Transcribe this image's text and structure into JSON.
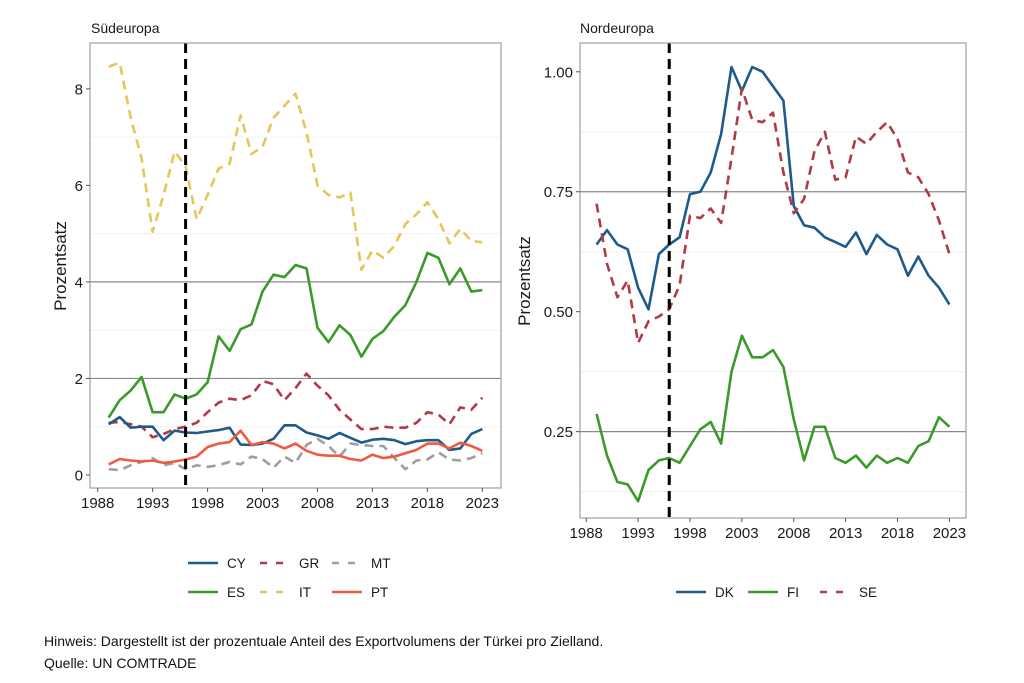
{
  "chart_data": [
    {
      "type": "line",
      "title": "Südeuropa",
      "xlabel": "",
      "ylabel": "Prozentsatz",
      "xlim": [
        1987.3,
        2024.7
      ],
      "ylim": [
        -0.27,
        8.95
      ],
      "xticks": [
        1988,
        1993,
        1998,
        2003,
        2008,
        2013,
        2018,
        2023
      ],
      "xtick_labels": [
        "1988",
        "1993",
        "1998",
        "2003",
        "2008",
        "2013",
        "2018",
        "2023"
      ],
      "yticks": [
        0,
        2,
        4,
        6,
        8
      ],
      "ytick_labels": [
        "0",
        "2",
        "4",
        "6",
        "8"
      ],
      "major_gridlines": [
        2,
        4
      ],
      "minor_gridlines": [
        1,
        3,
        5,
        7
      ],
      "vline": 1996,
      "legend_position": "bottom",
      "x": [
        1989,
        1990,
        1991,
        1992,
        1993,
        1994,
        1995,
        1996,
        1997,
        1998,
        1999,
        2000,
        2001,
        2002,
        2003,
        2004,
        2005,
        2006,
        2007,
        2008,
        2009,
        2010,
        2011,
        2012,
        2013,
        2014,
        2015,
        2016,
        2017,
        2018,
        2019,
        2020,
        2021,
        2022,
        2023
      ],
      "series": [
        {
          "name": "IT",
          "color": "#e5c65a",
          "dash": "dashed",
          "values": [
            8.46,
            8.54,
            7.4,
            6.56,
            5.04,
            5.8,
            6.7,
            6.4,
            5.3,
            5.8,
            6.35,
            6.45,
            7.45,
            6.65,
            6.8,
            7.4,
            7.65,
            7.9,
            7.1,
            6.0,
            5.8,
            5.75,
            5.85,
            4.25,
            4.65,
            4.5,
            4.75,
            5.2,
            5.4,
            5.65,
            5.3,
            4.8,
            5.1,
            4.85,
            4.82
          ]
        },
        {
          "name": "ES",
          "color": "#3a9a2a",
          "dash": "solid",
          "values": [
            1.19,
            1.55,
            1.75,
            2.03,
            1.3,
            1.3,
            1.67,
            1.58,
            1.67,
            1.92,
            2.87,
            2.57,
            3.02,
            3.12,
            3.8,
            4.15,
            4.1,
            4.35,
            4.28,
            3.05,
            2.75,
            3.1,
            2.9,
            2.45,
            2.82,
            2.98,
            3.28,
            3.52,
            4.0,
            4.6,
            4.5,
            3.95,
            4.28,
            3.8,
            3.83
          ]
        },
        {
          "name": "GR",
          "color": "#b03a48",
          "dash": "dashed",
          "values": [
            1.08,
            1.1,
            1.05,
            1.0,
            0.78,
            0.85,
            0.95,
            1.0,
            1.08,
            1.3,
            1.5,
            1.58,
            1.55,
            1.65,
            1.95,
            1.88,
            1.55,
            1.8,
            2.1,
            1.85,
            1.65,
            1.35,
            1.15,
            0.95,
            0.95,
            1.0,
            0.98,
            0.98,
            1.08,
            1.3,
            1.25,
            1.05,
            1.4,
            1.35,
            1.6
          ]
        },
        {
          "name": "CY",
          "color": "#1f5b8a",
          "dash": "solid",
          "values": [
            1.05,
            1.2,
            0.98,
            1.0,
            1.0,
            0.72,
            0.92,
            0.88,
            0.87,
            0.9,
            0.93,
            0.98,
            0.63,
            0.62,
            0.65,
            0.75,
            1.03,
            1.03,
            0.88,
            0.82,
            0.75,
            0.87,
            0.77,
            0.67,
            0.73,
            0.75,
            0.72,
            0.64,
            0.7,
            0.72,
            0.72,
            0.52,
            0.55,
            0.85,
            0.95
          ]
        },
        {
          "name": "MT",
          "color": "#9e9e9e",
          "dash": "dashed",
          "values": [
            0.12,
            0.1,
            0.2,
            0.27,
            0.35,
            0.2,
            0.25,
            0.12,
            0.2,
            0.17,
            0.2,
            0.27,
            0.22,
            0.38,
            0.33,
            0.15,
            0.38,
            0.25,
            0.62,
            0.75,
            0.6,
            0.38,
            0.65,
            0.62,
            0.6,
            0.6,
            0.35,
            0.12,
            0.3,
            0.32,
            0.47,
            0.32,
            0.3,
            0.35,
            0.45
          ]
        },
        {
          "name": "PT",
          "color": "#f05a40",
          "dash": "solid",
          "values": [
            0.22,
            0.33,
            0.3,
            0.28,
            0.3,
            0.25,
            0.28,
            0.32,
            0.38,
            0.58,
            0.65,
            0.68,
            0.92,
            0.62,
            0.68,
            0.65,
            0.55,
            0.65,
            0.5,
            0.42,
            0.4,
            0.4,
            0.33,
            0.3,
            0.42,
            0.35,
            0.38,
            0.45,
            0.52,
            0.65,
            0.65,
            0.55,
            0.67,
            0.6,
            0.5
          ]
        }
      ],
      "legend": [
        {
          "label": "CY",
          "color": "#1f5b8a",
          "dash": "solid"
        },
        {
          "label": "GR",
          "color": "#b03a48",
          "dash": "dashed"
        },
        {
          "label": "MT",
          "color": "#9e9e9e",
          "dash": "dashed"
        },
        {
          "label": "ES",
          "color": "#3a9a2a",
          "dash": "solid"
        },
        {
          "label": "IT",
          "color": "#e5c65a",
          "dash": "dashed"
        },
        {
          "label": "PT",
          "color": "#f05a40",
          "dash": "solid"
        }
      ]
    },
    {
      "type": "line",
      "title": "Nordeuropa",
      "xlabel": "",
      "ylabel": "Prozentsatz",
      "xlim": [
        1987.4,
        2024.6
      ],
      "ylim": [
        0.07,
        1.06
      ],
      "xticks": [
        1988,
        1993,
        1998,
        2003,
        2008,
        2013,
        2018,
        2023
      ],
      "xtick_labels": [
        "1988",
        "1993",
        "1998",
        "2003",
        "2008",
        "2013",
        "2018",
        "2023"
      ],
      "yticks": [
        0.25,
        0.5,
        0.75,
        1.0
      ],
      "ytick_labels": [
        "0.25",
        "0.50",
        "0.75",
        "1.00"
      ],
      "major_gridlines": [
        0.25,
        0.75
      ],
      "minor_gridlines": [
        0.125,
        0.375,
        0.625,
        0.875
      ],
      "vline": 1996,
      "legend_position": "bottom",
      "x": [
        1989,
        1990,
        1991,
        1992,
        1993,
        1994,
        1995,
        1996,
        1997,
        1998,
        1999,
        2000,
        2001,
        2002,
        2003,
        2004,
        2005,
        2006,
        2007,
        2008,
        2009,
        2010,
        2011,
        2012,
        2013,
        2014,
        2015,
        2016,
        2017,
        2018,
        2019,
        2020,
        2021,
        2022,
        2023
      ],
      "series": [
        {
          "name": "DK",
          "color": "#1f5b8a",
          "dash": "solid",
          "values": [
            0.64,
            0.67,
            0.64,
            0.63,
            0.55,
            0.505,
            0.62,
            0.64,
            0.655,
            0.745,
            0.75,
            0.79,
            0.87,
            1.01,
            0.96,
            1.01,
            1.0,
            0.97,
            0.94,
            0.72,
            0.68,
            0.675,
            0.655,
            0.645,
            0.635,
            0.665,
            0.62,
            0.66,
            0.64,
            0.63,
            0.575,
            0.615,
            0.575,
            0.55,
            0.515
          ]
        },
        {
          "name": "FI",
          "color": "#3a9a2a",
          "dash": "solid",
          "values": [
            0.287,
            0.2,
            0.145,
            0.14,
            0.105,
            0.17,
            0.19,
            0.195,
            0.185,
            0.22,
            0.255,
            0.27,
            0.225,
            0.375,
            0.45,
            0.405,
            0.405,
            0.42,
            0.385,
            0.275,
            0.19,
            0.26,
            0.26,
            0.195,
            0.185,
            0.2,
            0.175,
            0.2,
            0.185,
            0.195,
            0.185,
            0.22,
            0.23,
            0.28,
            0.26
          ]
        },
        {
          "name": "SE",
          "color": "#b03a48",
          "dash": "dashed",
          "values": [
            0.725,
            0.6,
            0.53,
            0.565,
            0.435,
            0.48,
            0.49,
            0.505,
            0.555,
            0.7,
            0.695,
            0.715,
            0.685,
            0.82,
            0.965,
            0.9,
            0.895,
            0.915,
            0.79,
            0.705,
            0.735,
            0.835,
            0.875,
            0.775,
            0.78,
            0.865,
            0.85,
            0.875,
            0.895,
            0.86,
            0.79,
            0.78,
            0.745,
            0.69,
            0.62
          ]
        }
      ],
      "legend": [
        {
          "label": "DK",
          "color": "#1f5b8a",
          "dash": "solid"
        },
        {
          "label": "FI",
          "color": "#3a9a2a",
          "dash": "solid"
        },
        {
          "label": "SE",
          "color": "#b03a48",
          "dash": "dashed"
        }
      ]
    }
  ],
  "notes": {
    "hint": "Hinweis: Dargestellt ist der prozentuale Anteil des Exportvolumens der Türkei pro Zielland.",
    "source": "Quelle: UN COMTRADE"
  }
}
